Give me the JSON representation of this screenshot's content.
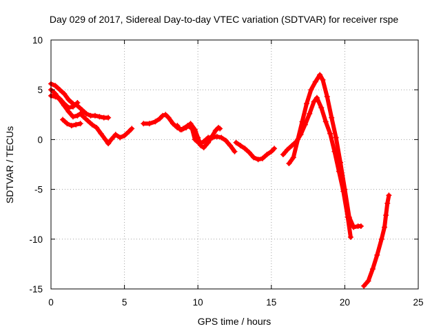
{
  "chart_data": {
    "type": "scatter",
    "title": "Day 029 of 2017, Sidereal Day-to-day VTEC variation (SDTVAR) for receiver rspe",
    "xlabel": "GPS time / hours",
    "ylabel": "SDTVAR / TECUs",
    "xlim": [
      0,
      25
    ],
    "ylim": [
      -15,
      10
    ],
    "xticks": [
      "0",
      "5",
      "10",
      "15",
      "20",
      "25"
    ],
    "yticks": [
      "10",
      "5",
      "0",
      "-5",
      "-10",
      "-15"
    ],
    "grid": true,
    "marker": "+",
    "series": [
      {
        "name": "SDTVAR",
        "color": "#ff0000",
        "segments": [
          [
            [
              0.0,
              5.6
            ],
            [
              0.3,
              5.4
            ],
            [
              0.6,
              5.0
            ],
            [
              0.9,
              4.6
            ],
            [
              1.2,
              4.0
            ],
            [
              1.5,
              3.6
            ],
            [
              1.8,
              3.4
            ],
            [
              2.1,
              3.0
            ],
            [
              2.4,
              2.6
            ],
            [
              2.7,
              2.4
            ],
            [
              3.0,
              2.4
            ],
            [
              3.3,
              2.3
            ],
            [
              3.6,
              2.2
            ],
            [
              3.9,
              2.2
            ]
          ],
          [
            [
              0.0,
              5.0
            ],
            [
              0.3,
              4.6
            ],
            [
              0.6,
              4.0
            ],
            [
              0.9,
              3.4
            ],
            [
              1.2,
              2.8
            ],
            [
              1.5,
              2.3
            ],
            [
              1.8,
              2.4
            ],
            [
              2.0,
              2.6
            ],
            [
              2.2,
              2.3
            ],
            [
              2.5,
              1.9
            ],
            [
              2.8,
              1.5
            ],
            [
              3.1,
              1.2
            ],
            [
              3.4,
              0.6
            ],
            [
              3.7,
              0.0
            ],
            [
              3.9,
              -0.4
            ],
            [
              4.1,
              0.0
            ],
            [
              4.4,
              0.5
            ],
            [
              4.7,
              0.2
            ],
            [
              5.0,
              0.4
            ],
            [
              5.3,
              0.8
            ],
            [
              5.5,
              1.1
            ]
          ],
          [
            [
              0.0,
              4.4
            ],
            [
              0.3,
              4.3
            ],
            [
              0.6,
              4.1
            ],
            [
              0.9,
              3.6
            ],
            [
              1.2,
              3.2
            ],
            [
              1.5,
              3.3
            ],
            [
              1.8,
              3.7
            ]
          ],
          [
            [
              0.8,
              2.0
            ],
            [
              1.1,
              1.6
            ],
            [
              1.4,
              1.4
            ],
            [
              1.7,
              1.5
            ],
            [
              2.0,
              1.6
            ]
          ],
          [
            [
              6.3,
              1.6
            ],
            [
              6.7,
              1.6
            ],
            [
              7.1,
              1.8
            ],
            [
              7.4,
              2.1
            ],
            [
              7.6,
              2.4
            ],
            [
              7.8,
              2.5
            ],
            [
              8.0,
              2.2
            ],
            [
              8.3,
              1.6
            ],
            [
              8.6,
              1.2
            ],
            [
              8.9,
              1.0
            ],
            [
              9.2,
              1.2
            ],
            [
              9.5,
              1.6
            ],
            [
              9.8,
              1.0
            ],
            [
              10.0,
              0.2
            ],
            [
              10.2,
              -0.6
            ],
            [
              10.4,
              -0.8
            ],
            [
              10.7,
              -0.3
            ],
            [
              11.0,
              0.4
            ],
            [
              11.2,
              0.9
            ],
            [
              11.4,
              1.2
            ],
            [
              11.5,
              1.1
            ]
          ],
          [
            [
              8.6,
              1.4
            ],
            [
              8.8,
              1.0
            ],
            [
              9.0,
              1.1
            ],
            [
              9.3,
              1.4
            ],
            [
              9.6,
              1.1
            ],
            [
              9.8,
              0.0
            ],
            [
              10.1,
              -0.4
            ],
            [
              10.4,
              -0.2
            ],
            [
              10.7,
              0.2
            ],
            [
              11.0,
              0.2
            ],
            [
              11.3,
              0.3
            ],
            [
              11.6,
              0.2
            ],
            [
              11.9,
              -0.1
            ],
            [
              12.2,
              -0.6
            ],
            [
              12.5,
              -1.2
            ]
          ],
          [
            [
              12.6,
              -0.3
            ],
            [
              12.9,
              -0.6
            ],
            [
              13.2,
              -0.9
            ],
            [
              13.5,
              -1.3
            ],
            [
              13.8,
              -1.8
            ],
            [
              14.1,
              -2.0
            ],
            [
              14.4,
              -1.9
            ],
            [
              14.7,
              -1.5
            ],
            [
              15.0,
              -1.2
            ],
            [
              15.2,
              -0.9
            ]
          ],
          [
            [
              15.8,
              -1.5
            ],
            [
              16.1,
              -1.0
            ],
            [
              16.4,
              -0.6
            ],
            [
              16.7,
              -0.2
            ],
            [
              17.0,
              0.5
            ],
            [
              17.3,
              1.5
            ],
            [
              17.6,
              2.6
            ],
            [
              17.9,
              3.8
            ],
            [
              18.1,
              4.2
            ],
            [
              18.4,
              3.2
            ],
            [
              18.7,
              1.8
            ],
            [
              19.0,
              0.6
            ],
            [
              19.3,
              -1.2
            ],
            [
              19.6,
              -3.2
            ],
            [
              19.9,
              -5.2
            ],
            [
              20.2,
              -7.8
            ],
            [
              20.4,
              -9.8
            ]
          ],
          [
            [
              16.2,
              -2.4
            ],
            [
              16.5,
              -1.8
            ],
            [
              16.8,
              0.0
            ],
            [
              17.1,
              1.8
            ],
            [
              17.4,
              3.6
            ],
            [
              17.7,
              5.0
            ],
            [
              18.0,
              5.8
            ],
            [
              18.3,
              6.5
            ],
            [
              18.5,
              6.0
            ],
            [
              18.8,
              4.3
            ],
            [
              19.1,
              2.2
            ],
            [
              19.4,
              0.2
            ],
            [
              19.7,
              -2.3
            ],
            [
              20.0,
              -5.0
            ],
            [
              20.3,
              -7.8
            ],
            [
              20.6,
              -8.8
            ],
            [
              20.9,
              -8.7
            ],
            [
              21.1,
              -8.7
            ]
          ],
          [
            [
              21.3,
              -14.7
            ],
            [
              21.6,
              -14.2
            ],
            [
              21.9,
              -13.0
            ],
            [
              22.2,
              -11.6
            ],
            [
              22.5,
              -10.0
            ],
            [
              22.7,
              -8.8
            ],
            [
              22.8,
              -7.6
            ],
            [
              22.9,
              -6.4
            ],
            [
              23.0,
              -5.6
            ]
          ]
        ]
      }
    ]
  }
}
